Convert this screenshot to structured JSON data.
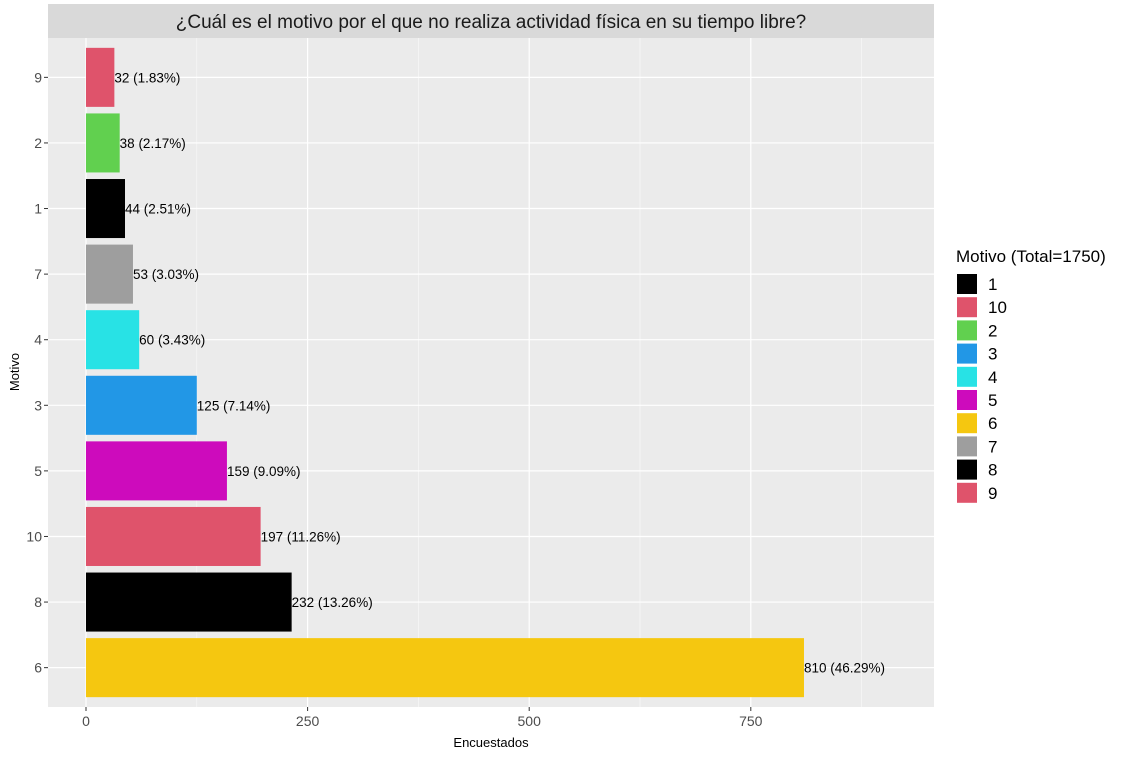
{
  "chart_data": {
    "type": "bar",
    "orientation": "horizontal",
    "title": "¿Cuál es el motivo por el que no realiza actividad física en su tiempo libre?",
    "xlabel": "Encuestados",
    "ylabel": "Motivo",
    "xlim": [
      0,
      900
    ],
    "x_ticks": [
      "0",
      "250",
      "500",
      "750"
    ],
    "x_tick_values": [
      0,
      250,
      500,
      750
    ],
    "grid": true,
    "categories": [
      "9",
      "2",
      "1",
      "7",
      "4",
      "3",
      "5",
      "10",
      "8",
      "6"
    ],
    "values": [
      32,
      38,
      44,
      53,
      60,
      125,
      159,
      197,
      232,
      810
    ],
    "labels": [
      "32 (1.83%)",
      "38 (2.17%)",
      "44 (2.51%)",
      "53 (3.03%)",
      "60 (3.43%)",
      "125 (7.14%)",
      "159 (9.09%)",
      "197 (11.26%)",
      "232 (13.26%)",
      "810 (46.29%)"
    ],
    "colors": {
      "1": "#000000",
      "10": "#DF536B",
      "2": "#61D04F",
      "3": "#2297E6",
      "4": "#28E2E5",
      "5": "#CD0BBC",
      "6": "#F5C710",
      "7": "#9E9E9E",
      "8": "#000000",
      "9": "#DF536B"
    },
    "legend": {
      "title": "Motivo (Total=1750)",
      "position": "right",
      "items": [
        "1",
        "10",
        "2",
        "3",
        "4",
        "5",
        "6",
        "7",
        "8",
        "9"
      ]
    }
  }
}
